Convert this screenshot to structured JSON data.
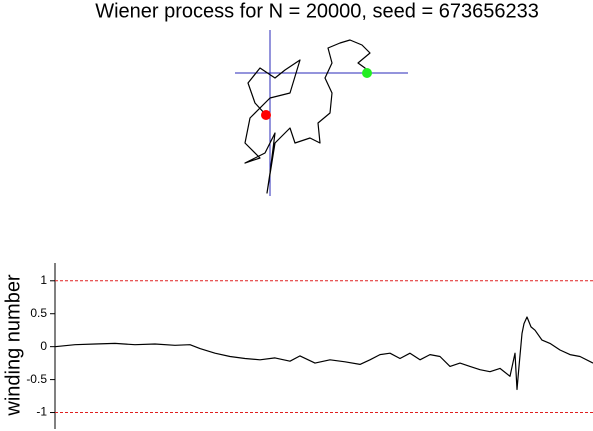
{
  "chart_data": [
    {
      "type": "path2d",
      "title": "Wiener process for N = 20000, seed = 673656233",
      "x": [
        -4,
        -15,
        -22,
        -10,
        5,
        15,
        30,
        20,
        0,
        -20,
        -25,
        -10,
        -25,
        -5,
        5,
        0,
        -3,
        5,
        20,
        25,
        40,
        50,
        48,
        60,
        62,
        55,
        62,
        58,
        70,
        80,
        92,
        100,
        88,
        95,
        97
      ],
      "series": [
        {
          "color": "#000000",
          "values": [
            -42,
            -30,
            -10,
            5,
            -5,
            3,
            13,
            -20,
            -25,
            -45,
            -70,
            -85,
            -90,
            -80,
            -60,
            -100,
            -120,
            -70,
            -55,
            -70,
            -65,
            -70,
            -50,
            -40,
            -20,
            -5,
            10,
            25,
            30,
            33,
            28,
            20,
            10,
            5,
            0
          ]
        }
      ],
      "xlim": [
        -35,
        138
      ],
      "ylim": [
        -123,
        43
      ],
      "axes_color": "#2a2ab8",
      "start_color": "#ff0000",
      "end_color": "#22ee22"
    },
    {
      "type": "line",
      "ylabel": "winding number",
      "x": [
        0,
        20,
        40,
        60,
        80,
        100,
        120,
        135,
        145,
        160,
        175,
        190,
        205,
        220,
        235,
        245,
        260,
        275,
        290,
        305,
        315,
        325,
        335,
        345,
        355,
        365,
        375,
        385,
        395,
        405,
        415,
        425,
        435,
        445,
        455,
        460,
        462,
        464,
        467,
        469,
        472,
        476,
        480,
        487,
        495,
        505,
        515,
        525,
        538
      ],
      "series": [
        {
          "color": "#000000",
          "values": [
            0,
            0.03,
            0.04,
            0.05,
            0.03,
            0.04,
            0.02,
            0.03,
            -0.03,
            -0.1,
            -0.15,
            -0.18,
            -0.2,
            -0.17,
            -0.22,
            -0.14,
            -0.25,
            -0.2,
            -0.23,
            -0.27,
            -0.2,
            -0.12,
            -0.1,
            -0.18,
            -0.1,
            -0.2,
            -0.12,
            -0.15,
            -0.3,
            -0.25,
            -0.3,
            -0.35,
            -0.38,
            -0.33,
            -0.45,
            -0.1,
            -0.65,
            -0.3,
            0.2,
            0.35,
            0.45,
            0.3,
            0.25,
            0.1,
            0.05,
            -0.05,
            -0.12,
            -0.15,
            -0.25
          ]
        }
      ],
      "xlim": [
        0,
        538
      ],
      "ylim": [
        -1.25,
        1.27
      ],
      "yticks": [
        -1,
        -0.5,
        0,
        0.5,
        1
      ],
      "hlines": [
        1,
        -1
      ],
      "hline_color": "#e02020"
    }
  ]
}
